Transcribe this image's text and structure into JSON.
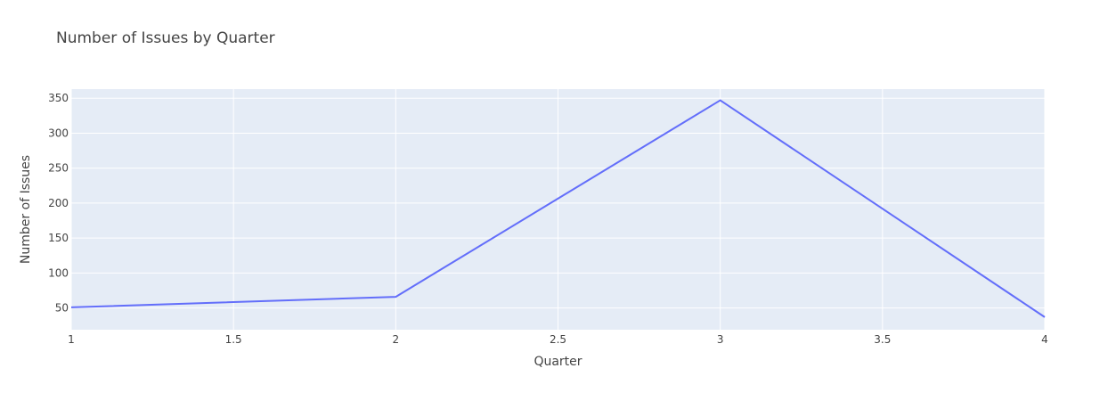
{
  "chart_data": {
    "type": "line",
    "title": "Number of Issues by Quarter",
    "xlabel": "Quarter",
    "ylabel": "Number of Issues",
    "x": [
      1,
      2,
      3,
      4
    ],
    "series": [
      {
        "values": [
          51,
          66,
          347,
          37
        ]
      }
    ],
    "xlim": [
      1,
      4
    ],
    "ylim": [
      19,
      363
    ],
    "xticks": [
      1,
      1.5,
      2,
      2.5,
      3,
      3.5,
      4
    ],
    "xtick_labels": [
      "1",
      "1.5",
      "2",
      "2.5",
      "3",
      "3.5",
      "4"
    ],
    "yticks": [
      50,
      100,
      150,
      200,
      250,
      300,
      350
    ],
    "ytick_labels": [
      "50",
      "100",
      "150",
      "200",
      "250",
      "300",
      "350"
    ],
    "grid": true,
    "legend": "none",
    "colors": {
      "plot_background": "#e5ecf6",
      "grid": "#ffffff",
      "line": "#636efa",
      "text": "#444444"
    }
  }
}
